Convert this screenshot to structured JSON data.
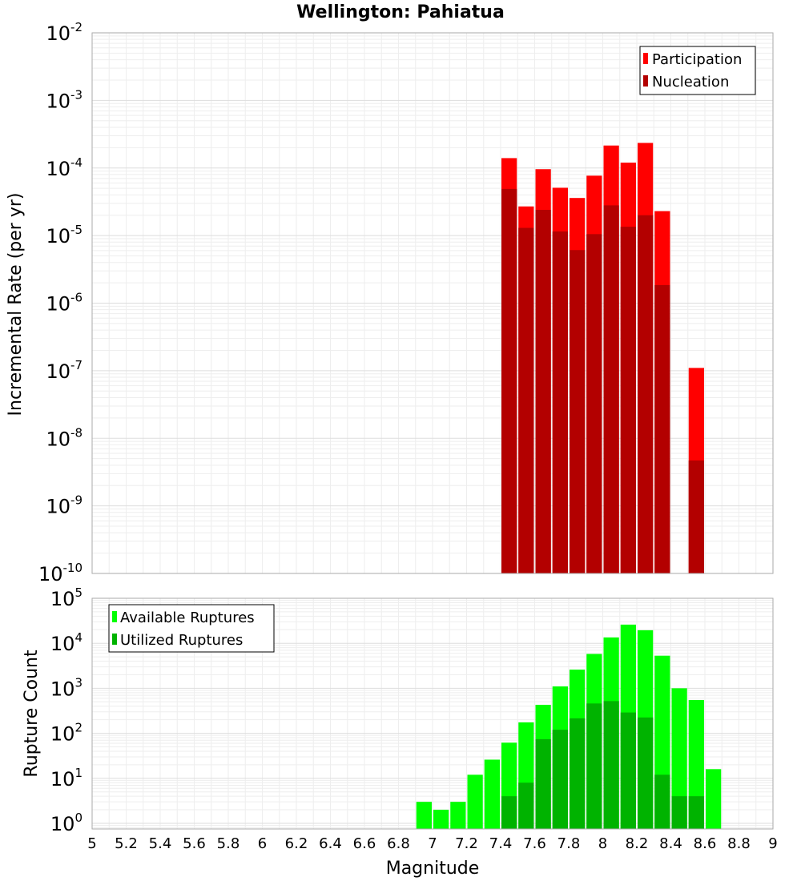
{
  "chart_data": [
    {
      "type": "bar",
      "title": "Wellington: Pahiatua",
      "xlabel": "Magnitude",
      "ylabel": "Incremental Rate (per yr)",
      "yscale": "log",
      "xlim": [
        5,
        9
      ],
      "ylim": [
        1e-10,
        0.01
      ],
      "ytick_labels": [
        {
          "base": "10",
          "exp": "-10"
        },
        {
          "base": "10",
          "exp": "-9"
        },
        {
          "base": "10",
          "exp": "-8"
        },
        {
          "base": "10",
          "exp": "-7"
        },
        {
          "base": "10",
          "exp": "-6"
        },
        {
          "base": "10",
          "exp": "-5"
        },
        {
          "base": "10",
          "exp": "-4"
        },
        {
          "base": "10",
          "exp": "-3"
        },
        {
          "base": "10",
          "exp": "-2"
        }
      ],
      "legend_position": "top-right",
      "x": [
        7.45,
        7.55,
        7.65,
        7.75,
        7.85,
        7.95,
        8.05,
        8.15,
        8.25,
        8.35,
        8.45,
        8.55
      ],
      "series": [
        {
          "name": "Participation",
          "color": "#ff0000",
          "values": [
            0.00014,
            2.7e-05,
            9.6e-05,
            5.1e-05,
            3.6e-05,
            7.7e-05,
            0.000215,
            0.00012,
            0.000235,
            2.3e-05,
            null,
            1.1e-07
          ]
        },
        {
          "name": "Nucleation",
          "color": "#b30000",
          "values": [
            4.9e-05,
            1.3e-05,
            2.4e-05,
            1.15e-05,
            6.1e-06,
            1.05e-05,
            2.8e-05,
            1.35e-05,
            2e-05,
            1.85e-06,
            null,
            4.7e-09
          ]
        }
      ]
    },
    {
      "type": "bar",
      "title": "",
      "xlabel": "Magnitude",
      "ylabel": "Rupture Count",
      "yscale": "log",
      "xlim": [
        5,
        9
      ],
      "ylim": [
        0.75,
        100000
      ],
      "ytick_labels": [
        {
          "base": "10",
          "exp": "0"
        },
        {
          "base": "10",
          "exp": "1"
        },
        {
          "base": "10",
          "exp": "2"
        },
        {
          "base": "10",
          "exp": "3"
        },
        {
          "base": "10",
          "exp": "4"
        },
        {
          "base": "10",
          "exp": "5"
        }
      ],
      "xtick_labels": [
        "5",
        "5.2",
        "5.4",
        "5.6",
        "5.8",
        "6",
        "6.2",
        "6.4",
        "6.6",
        "6.8",
        "7",
        "7.2",
        "7.4",
        "7.6",
        "7.8",
        "8",
        "8.2",
        "8.4",
        "8.6",
        "8.8",
        "9"
      ],
      "legend_position": "top-left",
      "x": [
        6.95,
        7.05,
        7.15,
        7.25,
        7.35,
        7.45,
        7.55,
        7.65,
        7.75,
        7.85,
        7.95,
        8.05,
        8.15,
        8.25,
        8.35,
        8.45,
        8.55,
        8.65
      ],
      "series": [
        {
          "name": "Available Ruptures",
          "color": "#00ff00",
          "values": [
            3,
            2,
            3,
            12,
            26,
            62,
            175,
            430,
            1100,
            2600,
            5800,
            13500,
            26000,
            19500,
            5300,
            1000,
            550,
            16
          ]
        },
        {
          "name": "Utilized Ruptures",
          "color": "#00b300",
          "values": [
            null,
            null,
            null,
            null,
            null,
            4,
            8,
            74,
            120,
            215,
            460,
            520,
            290,
            225,
            12,
            4,
            4,
            null
          ]
        }
      ]
    }
  ]
}
